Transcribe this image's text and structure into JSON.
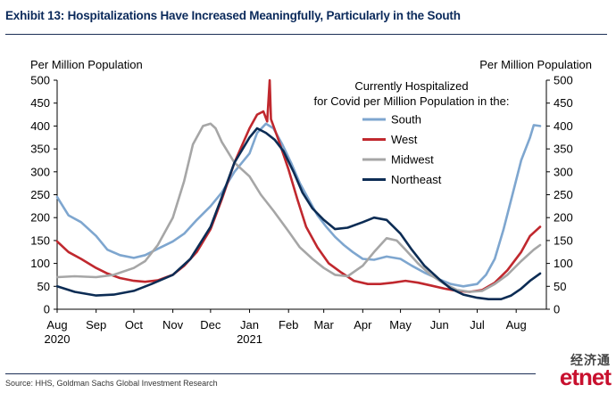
{
  "header": {
    "title": "Exhibit 13: Hospitalizations Have Increased Meaningfully, Particularly in the South"
  },
  "footer": {
    "source": "Source: HHS, Goldman Sachs Global Investment Research"
  },
  "watermark": {
    "cn": "经济通",
    "en": "etnet"
  },
  "chart_data": {
    "type": "line",
    "title": "",
    "ylabel_left": "Per Million Population",
    "ylabel_right": "Per Million Population",
    "legend_title": [
      "Currently Hospitalized",
      "for Covid per Million Population in the:"
    ],
    "legend_position": "top-right",
    "ylim": [
      0,
      500
    ],
    "yticks": [
      0,
      50,
      100,
      150,
      200,
      250,
      300,
      350,
      400,
      450,
      500
    ],
    "xlim": [
      "2020-08-01",
      "2021-08-25"
    ],
    "xticks": [
      {
        "date": "2020-08-01",
        "label": "Aug",
        "sublabel": "2020"
      },
      {
        "date": "2020-09-01",
        "label": "Sep",
        "sublabel": ""
      },
      {
        "date": "2020-10-01",
        "label": "Oct",
        "sublabel": ""
      },
      {
        "date": "2020-11-01",
        "label": "Nov",
        "sublabel": ""
      },
      {
        "date": "2020-12-01",
        "label": "Dec",
        "sublabel": ""
      },
      {
        "date": "2021-01-01",
        "label": "Jan",
        "sublabel": "2021"
      },
      {
        "date": "2021-02-01",
        "label": "Feb",
        "sublabel": ""
      },
      {
        "date": "2021-03-01",
        "label": "Mar",
        "sublabel": ""
      },
      {
        "date": "2021-04-01",
        "label": "Apr",
        "sublabel": ""
      },
      {
        "date": "2021-05-01",
        "label": "May",
        "sublabel": ""
      },
      {
        "date": "2021-06-01",
        "label": "Jun",
        "sublabel": ""
      },
      {
        "date": "2021-07-01",
        "label": "Jul",
        "sublabel": ""
      },
      {
        "date": "2021-08-01",
        "label": "Aug",
        "sublabel": ""
      }
    ],
    "grid": false,
    "series": [
      {
        "name": "South",
        "color": "#7ea6cf",
        "points": [
          [
            "2020-08-01",
            245
          ],
          [
            "2020-08-10",
            205
          ],
          [
            "2020-08-20",
            190
          ],
          [
            "2020-09-01",
            160
          ],
          [
            "2020-09-10",
            130
          ],
          [
            "2020-09-20",
            118
          ],
          [
            "2020-10-01",
            112
          ],
          [
            "2020-10-10",
            118
          ],
          [
            "2020-10-20",
            132
          ],
          [
            "2020-11-01",
            148
          ],
          [
            "2020-11-10",
            165
          ],
          [
            "2020-11-20",
            195
          ],
          [
            "2020-12-01",
            225
          ],
          [
            "2020-12-10",
            255
          ],
          [
            "2020-12-20",
            300
          ],
          [
            "2021-01-01",
            340
          ],
          [
            "2021-01-07",
            385
          ],
          [
            "2021-01-14",
            405
          ],
          [
            "2021-01-20",
            395
          ],
          [
            "2021-01-27",
            360
          ],
          [
            "2021-02-03",
            320
          ],
          [
            "2021-02-10",
            275
          ],
          [
            "2021-02-17",
            240
          ],
          [
            "2021-02-24",
            205
          ],
          [
            "2021-03-03",
            180
          ],
          [
            "2021-03-10",
            158
          ],
          [
            "2021-03-17",
            140
          ],
          [
            "2021-03-24",
            125
          ],
          [
            "2021-04-01",
            110
          ],
          [
            "2021-04-10",
            108
          ],
          [
            "2021-04-20",
            115
          ],
          [
            "2021-05-01",
            110
          ],
          [
            "2021-05-10",
            95
          ],
          [
            "2021-05-20",
            80
          ],
          [
            "2021-06-01",
            65
          ],
          [
            "2021-06-10",
            55
          ],
          [
            "2021-06-20",
            50
          ],
          [
            "2021-07-01",
            55
          ],
          [
            "2021-07-08",
            75
          ],
          [
            "2021-07-15",
            110
          ],
          [
            "2021-07-22",
            175
          ],
          [
            "2021-07-29",
            250
          ],
          [
            "2021-08-05",
            325
          ],
          [
            "2021-08-12",
            375
          ],
          [
            "2021-08-15",
            402
          ],
          [
            "2021-08-20",
            400
          ]
        ]
      },
      {
        "name": "West",
        "color": "#c0282e",
        "points": [
          [
            "2020-08-01",
            148
          ],
          [
            "2020-08-10",
            125
          ],
          [
            "2020-08-20",
            110
          ],
          [
            "2020-09-01",
            90
          ],
          [
            "2020-09-10",
            78
          ],
          [
            "2020-09-20",
            68
          ],
          [
            "2020-10-01",
            62
          ],
          [
            "2020-10-10",
            60
          ],
          [
            "2020-10-20",
            63
          ],
          [
            "2020-11-01",
            75
          ],
          [
            "2020-11-10",
            95
          ],
          [
            "2020-11-20",
            125
          ],
          [
            "2020-12-01",
            175
          ],
          [
            "2020-12-10",
            240
          ],
          [
            "2020-12-20",
            320
          ],
          [
            "2021-01-01",
            395
          ],
          [
            "2021-01-07",
            425
          ],
          [
            "2021-01-12",
            432
          ],
          [
            "2021-01-15",
            410
          ],
          [
            "2021-01-17",
            500
          ],
          [
            "2021-01-18",
            415
          ],
          [
            "2021-01-24",
            370
          ],
          [
            "2021-02-01",
            305
          ],
          [
            "2021-02-08",
            240
          ],
          [
            "2021-02-15",
            180
          ],
          [
            "2021-02-24",
            135
          ],
          [
            "2021-03-05",
            100
          ],
          [
            "2021-03-15",
            80
          ],
          [
            "2021-03-25",
            62
          ],
          [
            "2021-04-05",
            55
          ],
          [
            "2021-04-15",
            55
          ],
          [
            "2021-04-25",
            58
          ],
          [
            "2021-05-05",
            62
          ],
          [
            "2021-05-15",
            58
          ],
          [
            "2021-05-25",
            52
          ],
          [
            "2021-06-05",
            45
          ],
          [
            "2021-06-15",
            40
          ],
          [
            "2021-06-25",
            38
          ],
          [
            "2021-07-05",
            42
          ],
          [
            "2021-07-15",
            58
          ],
          [
            "2021-07-25",
            85
          ],
          [
            "2021-08-05",
            125
          ],
          [
            "2021-08-12",
            160
          ],
          [
            "2021-08-20",
            180
          ]
        ]
      },
      {
        "name": "Midwest",
        "color": "#a6a6a6",
        "points": [
          [
            "2020-08-01",
            70
          ],
          [
            "2020-08-15",
            72
          ],
          [
            "2020-09-01",
            70
          ],
          [
            "2020-09-15",
            75
          ],
          [
            "2020-10-01",
            90
          ],
          [
            "2020-10-10",
            105
          ],
          [
            "2020-10-20",
            140
          ],
          [
            "2020-11-01",
            200
          ],
          [
            "2020-11-10",
            280
          ],
          [
            "2020-11-17",
            360
          ],
          [
            "2020-11-25",
            400
          ],
          [
            "2020-12-01",
            405
          ],
          [
            "2020-12-05",
            395
          ],
          [
            "2020-12-10",
            365
          ],
          [
            "2020-12-20",
            320
          ],
          [
            "2021-01-01",
            290
          ],
          [
            "2021-01-10",
            250
          ],
          [
            "2021-01-20",
            215
          ],
          [
            "2021-02-01",
            170
          ],
          [
            "2021-02-10",
            135
          ],
          [
            "2021-02-20",
            110
          ],
          [
            "2021-03-01",
            90
          ],
          [
            "2021-03-10",
            75
          ],
          [
            "2021-03-20",
            72
          ],
          [
            "2021-04-01",
            95
          ],
          [
            "2021-04-10",
            125
          ],
          [
            "2021-04-20",
            155
          ],
          [
            "2021-04-28",
            150
          ],
          [
            "2021-05-05",
            130
          ],
          [
            "2021-05-15",
            100
          ],
          [
            "2021-05-25",
            75
          ],
          [
            "2021-06-05",
            55
          ],
          [
            "2021-06-15",
            42
          ],
          [
            "2021-06-25",
            38
          ],
          [
            "2021-07-05",
            40
          ],
          [
            "2021-07-15",
            55
          ],
          [
            "2021-07-25",
            75
          ],
          [
            "2021-08-05",
            105
          ],
          [
            "2021-08-15",
            130
          ],
          [
            "2021-08-20",
            140
          ]
        ]
      },
      {
        "name": "Northeast",
        "color": "#0c2c54",
        "points": [
          [
            "2020-08-01",
            50
          ],
          [
            "2020-08-15",
            38
          ],
          [
            "2020-09-01",
            30
          ],
          [
            "2020-09-15",
            32
          ],
          [
            "2020-10-01",
            40
          ],
          [
            "2020-10-15",
            55
          ],
          [
            "2020-11-01",
            75
          ],
          [
            "2020-11-15",
            110
          ],
          [
            "2020-12-01",
            180
          ],
          [
            "2020-12-10",
            245
          ],
          [
            "2020-12-20",
            320
          ],
          [
            "2021-01-01",
            375
          ],
          [
            "2021-01-07",
            395
          ],
          [
            "2021-01-14",
            385
          ],
          [
            "2021-01-21",
            370
          ],
          [
            "2021-01-28",
            345
          ],
          [
            "2021-02-05",
            300
          ],
          [
            "2021-02-12",
            255
          ],
          [
            "2021-02-20",
            220
          ],
          [
            "2021-03-01",
            195
          ],
          [
            "2021-03-10",
            175
          ],
          [
            "2021-03-20",
            178
          ],
          [
            "2021-04-01",
            190
          ],
          [
            "2021-04-10",
            200
          ],
          [
            "2021-04-20",
            195
          ],
          [
            "2021-05-01",
            165
          ],
          [
            "2021-05-10",
            130
          ],
          [
            "2021-05-20",
            95
          ],
          [
            "2021-06-01",
            65
          ],
          [
            "2021-06-10",
            45
          ],
          [
            "2021-06-20",
            32
          ],
          [
            "2021-07-01",
            25
          ],
          [
            "2021-07-10",
            22
          ],
          [
            "2021-07-20",
            22
          ],
          [
            "2021-07-28",
            30
          ],
          [
            "2021-08-05",
            45
          ],
          [
            "2021-08-12",
            62
          ],
          [
            "2021-08-20",
            78
          ]
        ]
      }
    ]
  }
}
